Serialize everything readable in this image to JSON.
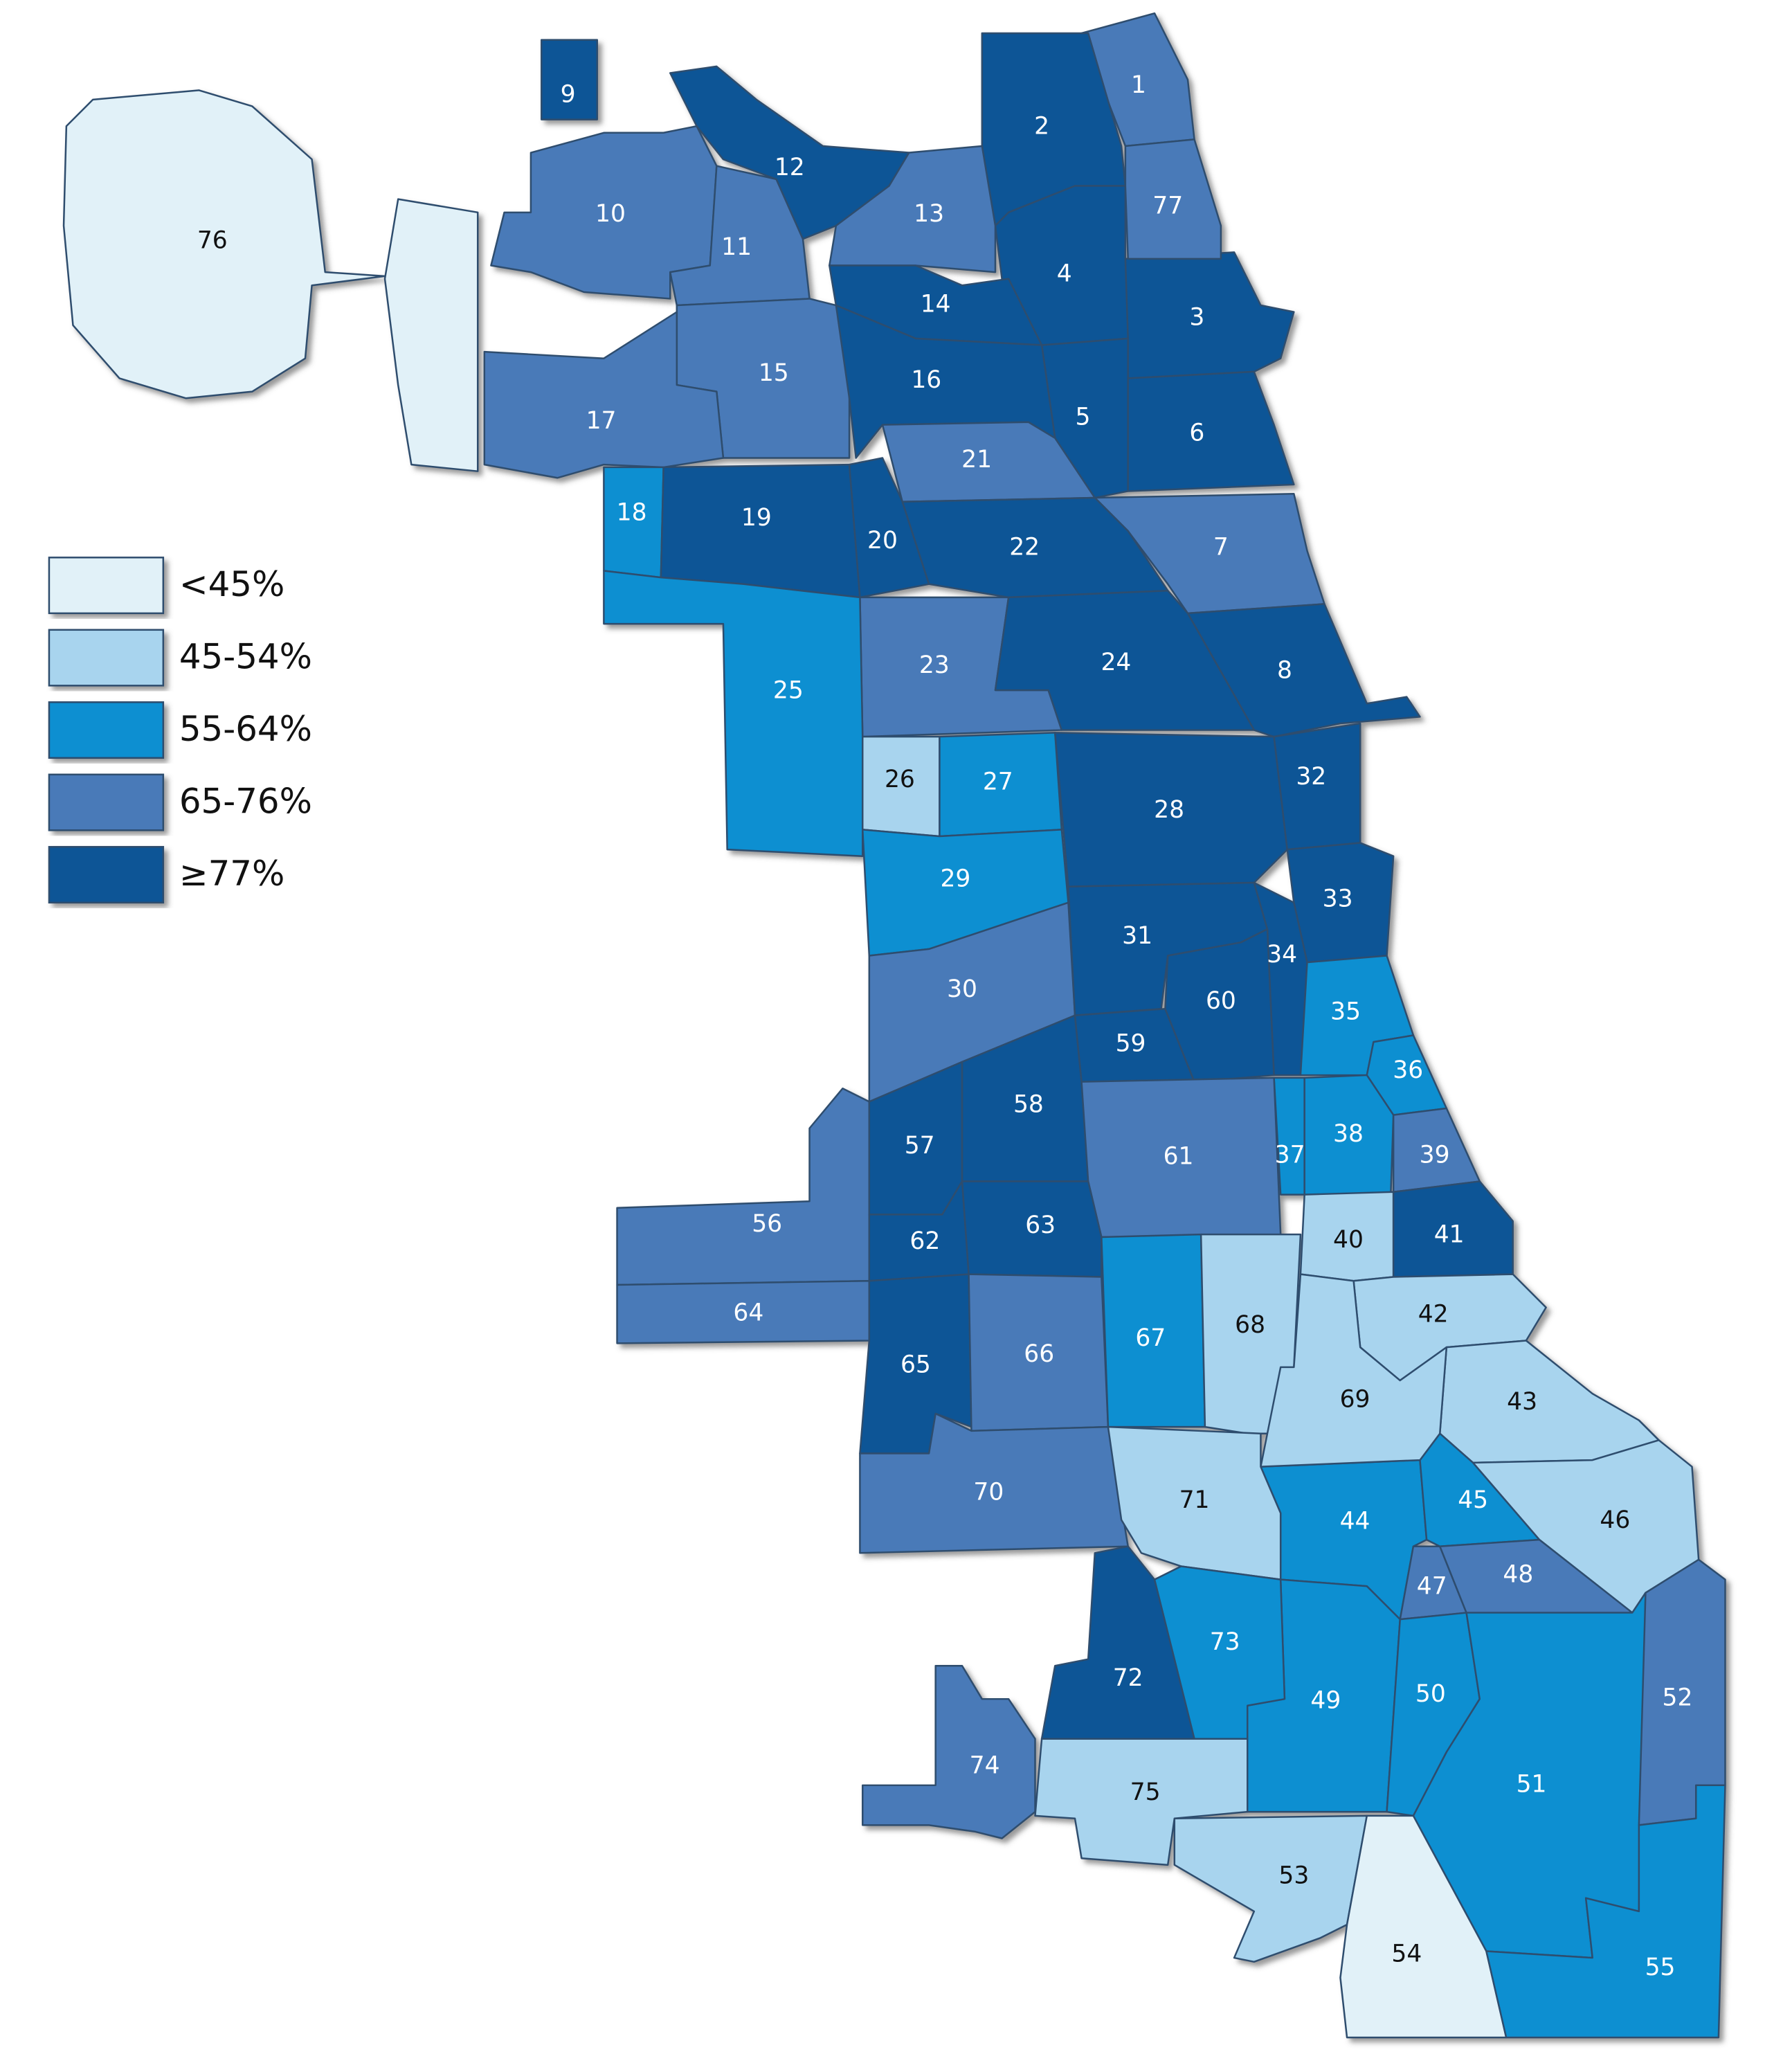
{
  "legend": [
    {
      "label": "<45%",
      "color": "#e1f1f8"
    },
    {
      "label": "45-54%",
      "color": "#a8d4ee"
    },
    {
      "label": "55-64%",
      "color": "#0a8fd1"
    },
    {
      "label": "65-76%",
      "color": "#4a7ab8"
    },
    {
      "label": "≥77%",
      "color": "#0b5596"
    }
  ],
  "areas": [
    {
      "label": "1",
      "color": "#4a7ab8"
    },
    {
      "label": "2",
      "color": "#0b5596"
    },
    {
      "label": "3",
      "color": "#0b5596"
    },
    {
      "label": "4",
      "color": "#0b5596"
    },
    {
      "label": "5",
      "color": "#0b5596"
    },
    {
      "label": "6",
      "color": "#0b5596"
    },
    {
      "label": "7",
      "color": "#4a7ab8"
    },
    {
      "label": "8",
      "color": "#0b5596"
    },
    {
      "label": "9",
      "color": "#0b5596"
    },
    {
      "label": "10",
      "color": "#4a7ab8"
    },
    {
      "label": "11",
      "color": "#4a7ab8"
    },
    {
      "label": "12",
      "color": "#0b5596"
    },
    {
      "label": "13",
      "color": "#4a7ab8"
    },
    {
      "label": "14",
      "color": "#0b5596"
    },
    {
      "label": "15",
      "color": "#4a7ab8"
    },
    {
      "label": "16",
      "color": "#0b5596"
    },
    {
      "label": "17",
      "color": "#4a7ab8"
    },
    {
      "label": "18",
      "color": "#0a8fd1"
    },
    {
      "label": "19",
      "color": "#0b5596"
    },
    {
      "label": "20",
      "color": "#0b5596"
    },
    {
      "label": "21",
      "color": "#4a7ab8"
    },
    {
      "label": "22",
      "color": "#0b5596"
    },
    {
      "label": "23",
      "color": "#4a7ab8"
    },
    {
      "label": "24",
      "color": "#0b5596"
    },
    {
      "label": "25",
      "color": "#0a8fd1"
    },
    {
      "label": "26",
      "color": "#a8d4ee"
    },
    {
      "label": "27",
      "color": "#0a8fd1"
    },
    {
      "label": "28",
      "color": "#0b5596"
    },
    {
      "label": "29",
      "color": "#0a8fd1"
    },
    {
      "label": "30",
      "color": "#4a7ab8"
    },
    {
      "label": "31",
      "color": "#0b5596"
    },
    {
      "label": "32",
      "color": "#0b5596"
    },
    {
      "label": "33",
      "color": "#0b5596"
    },
    {
      "label": "34",
      "color": "#0b5596"
    },
    {
      "label": "35",
      "color": "#0a8fd1"
    },
    {
      "label": "36",
      "color": "#0a8fd1"
    },
    {
      "label": "37",
      "color": "#0a8fd1"
    },
    {
      "label": "38",
      "color": "#0a8fd1"
    },
    {
      "label": "39",
      "color": "#4a7ab8"
    },
    {
      "label": "40",
      "color": "#a8d4ee"
    },
    {
      "label": "41",
      "color": "#0b5596"
    },
    {
      "label": "42",
      "color": "#a8d4ee"
    },
    {
      "label": "43",
      "color": "#a8d4ee"
    },
    {
      "label": "44",
      "color": "#0a8fd1"
    },
    {
      "label": "45",
      "color": "#0a8fd1"
    },
    {
      "label": "46",
      "color": "#a8d4ee"
    },
    {
      "label": "47",
      "color": "#4a7ab8"
    },
    {
      "label": "48",
      "color": "#4a7ab8"
    },
    {
      "label": "49",
      "color": "#0a8fd1"
    },
    {
      "label": "50",
      "color": "#0a8fd1"
    },
    {
      "label": "51",
      "color": "#0a8fd1"
    },
    {
      "label": "52",
      "color": "#4a7ab8"
    },
    {
      "label": "53",
      "color": "#a8d4ee"
    },
    {
      "label": "54",
      "color": "#e1f1f8"
    },
    {
      "label": "55",
      "color": "#0a8fd1"
    },
    {
      "label": "56",
      "color": "#4a7ab8"
    },
    {
      "label": "57",
      "color": "#0b5596"
    },
    {
      "label": "58",
      "color": "#0b5596"
    },
    {
      "label": "59",
      "color": "#0b5596"
    },
    {
      "label": "60",
      "color": "#0b5596"
    },
    {
      "label": "61",
      "color": "#4a7ab8"
    },
    {
      "label": "62",
      "color": "#0b5596"
    },
    {
      "label": "63",
      "color": "#0b5596"
    },
    {
      "label": "64",
      "color": "#4a7ab8"
    },
    {
      "label": "65",
      "color": "#0b5596"
    },
    {
      "label": "66",
      "color": "#4a7ab8"
    },
    {
      "label": "67",
      "color": "#0a8fd1"
    },
    {
      "label": "68",
      "color": "#a8d4ee"
    },
    {
      "label": "69",
      "color": "#a8d4ee"
    },
    {
      "label": "70",
      "color": "#4a7ab8"
    },
    {
      "label": "71",
      "color": "#a8d4ee"
    },
    {
      "label": "72",
      "color": "#0b5596"
    },
    {
      "label": "73",
      "color": "#0a8fd1"
    },
    {
      "label": "74",
      "color": "#4a7ab8"
    },
    {
      "label": "75",
      "color": "#a8d4ee"
    },
    {
      "label": "76",
      "color": "#e1f1f8"
    },
    {
      "label": "77",
      "color": "#4a7ab8"
    }
  ]
}
